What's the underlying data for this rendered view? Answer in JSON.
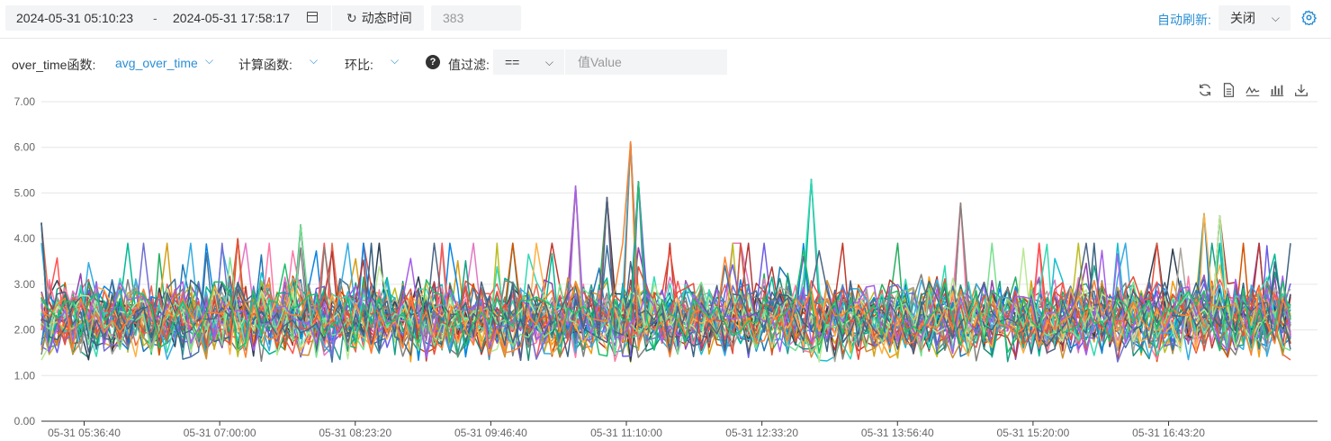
{
  "header": {
    "start_time": "2024-05-31 05:10:23",
    "separator": "-",
    "end_time": "2024-05-31 17:58:17",
    "dynamic_time_label": "动态时间",
    "count_value": "383",
    "auto_refresh_label": "自动刷新:",
    "auto_refresh_value": "关闭"
  },
  "filters": {
    "over_time_label": "over_time函数:",
    "over_time_value": "avg_over_time",
    "calc_label": "计算函数:",
    "ratio_label": "环比:",
    "value_filter_label": "值过滤:",
    "operator_value": "==",
    "value_placeholder": "值Value"
  },
  "toolbar": [
    "refresh-icon",
    "document-icon",
    "line-chart-icon",
    "bar-chart-icon",
    "download-icon"
  ],
  "colors": {
    "accent": "#2a8fd4",
    "series": [
      "#e8684a",
      "#2a9d8f",
      "#c0392b",
      "#8e44ad",
      "#27ae60",
      "#d4a017",
      "#1f77b4",
      "#e377c2",
      "#7f7f7f",
      "#bcbd22",
      "#17becf",
      "#9b59b6",
      "#e74c3c",
      "#16a085",
      "#f39c12",
      "#2c3e50",
      "#d35400",
      "#6c5ce7",
      "#00b894",
      "#fd79a8",
      "#0984e3",
      "#b33939",
      "#218c74",
      "#cc8e35",
      "#40739e",
      "#aaa69d",
      "#ff5252",
      "#34ace0",
      "#706fd3",
      "#33d9b2",
      "#84817a",
      "#ffb142",
      "#b8e994",
      "#3c6382",
      "#e55039",
      "#78e08f",
      "#a55eea",
      "#4b6584",
      "#fa8231",
      "#20bf6b"
    ]
  },
  "chart_data": {
    "type": "line",
    "y_ticks": [
      "7.00",
      "6.00",
      "5.00",
      "4.00",
      "3.00",
      "2.00",
      "1.00",
      "0.00"
    ],
    "x_ticks": [
      "05-31 05:36:40",
      "05-31 07:00:00",
      "05-31 08:23:20",
      "05-31 09:46:40",
      "05-31 11:10:00",
      "05-31 12:33:20",
      "05-31 13:56:40",
      "05-31 15:20:00",
      "05-31 16:43:20"
    ],
    "x_range": [
      "2024-05-31 05:10:23",
      "2024-05-31 17:58:17"
    ],
    "ylim": [
      0,
      7
    ],
    "series_count": 40,
    "points_per_series": 160,
    "typical_range": [
      1.2,
      3.3
    ],
    "peaks": [
      {
        "time": "05-31 05:12",
        "value": 4.35
      },
      {
        "time": "05-31 07:13",
        "value": 4.0
      },
      {
        "time": "05-31 07:48",
        "value": 4.3
      },
      {
        "time": "05-31 10:40",
        "value": 5.15
      },
      {
        "time": "05-31 11:00",
        "value": 4.9
      },
      {
        "time": "05-31 11:15",
        "value": 6.12
      },
      {
        "time": "05-31 11:18",
        "value": 5.25
      },
      {
        "time": "05-31 13:02",
        "value": 5.3
      },
      {
        "time": "05-31 14:35",
        "value": 4.78
      },
      {
        "time": "05-31 17:04",
        "value": 4.55
      },
      {
        "time": "05-31 17:14",
        "value": 4.5
      }
    ],
    "grid": true,
    "legend": "none"
  }
}
